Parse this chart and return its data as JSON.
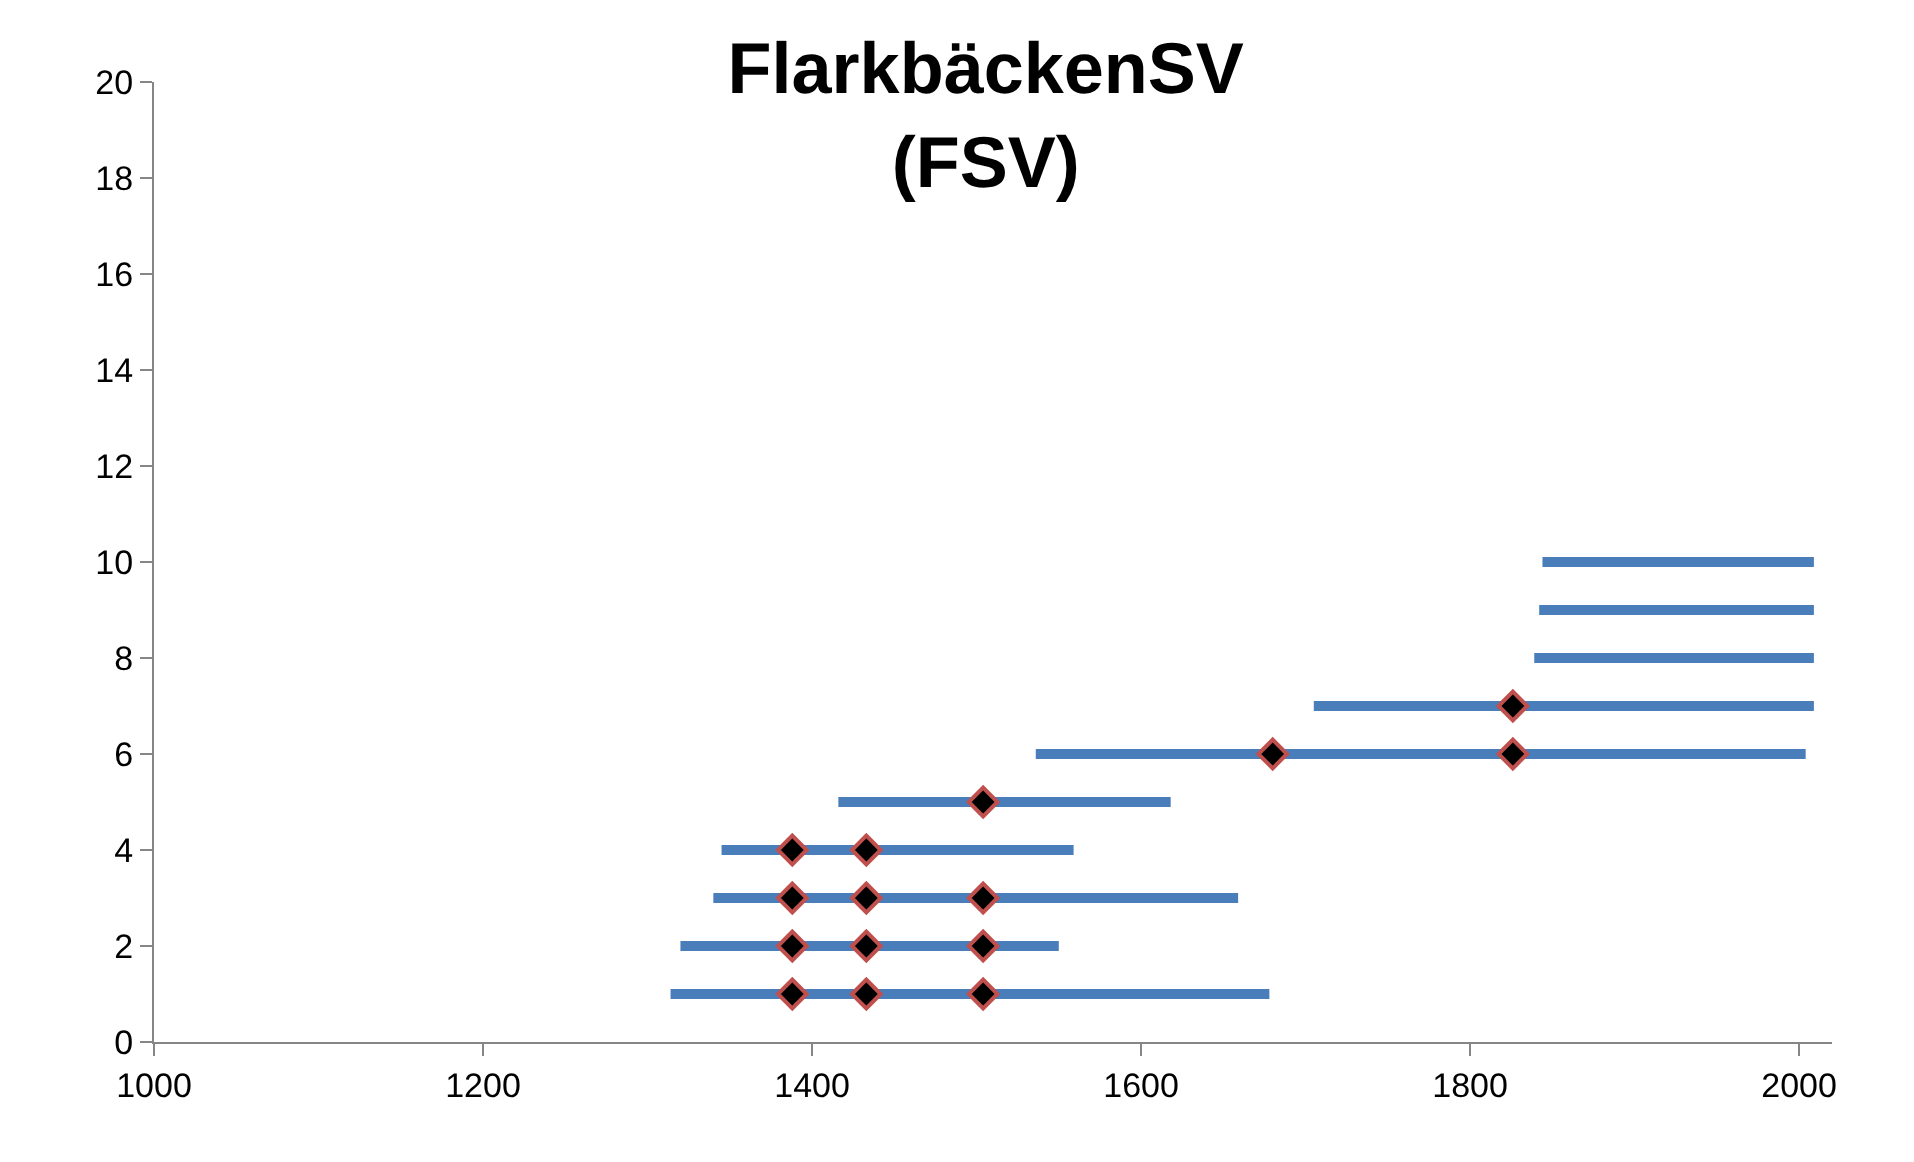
{
  "chart_data": {
    "type": "line",
    "title": "FlarkbäckenSV\n(FSV)",
    "xlim": [
      1000,
      2020
    ],
    "xticks": [
      1000,
      1200,
      1400,
      1600,
      1800,
      2000
    ],
    "ylim": [
      0,
      20
    ],
    "yticks": [
      0,
      2,
      4,
      6,
      8,
      10,
      12,
      14,
      16,
      18,
      20
    ],
    "line_style": "solid",
    "series": [
      {
        "color": "#4a7ebb",
        "x": [
          1314,
          1678
        ],
        "values": [
          1,
          1
        ]
      },
      {
        "color": "#4a7ebb",
        "x": [
          1320,
          1550
        ],
        "values": [
          2,
          2
        ]
      },
      {
        "color": "#4a7ebb",
        "x": [
          1340,
          1659
        ],
        "values": [
          3,
          3
        ]
      },
      {
        "color": "#4a7ebb",
        "x": [
          1345,
          1559
        ],
        "values": [
          4,
          4
        ]
      },
      {
        "color": "#4a7ebb",
        "x": [
          1416,
          1618
        ],
        "values": [
          5,
          5
        ]
      },
      {
        "color": "#4a7ebb",
        "x": [
          1536,
          2004
        ],
        "values": [
          6,
          6
        ]
      },
      {
        "color": "#4a7ebb",
        "x": [
          1705,
          2009
        ],
        "values": [
          7,
          7
        ]
      },
      {
        "color": "#4a7ebb",
        "x": [
          1839,
          2009
        ],
        "values": [
          8,
          8
        ]
      },
      {
        "color": "#4a7ebb",
        "x": [
          1842,
          2009
        ],
        "values": [
          9,
          9
        ]
      },
      {
        "color": "#4a7ebb",
        "x": [
          1844,
          2009
        ],
        "values": [
          10,
          10
        ]
      },
      {
        "type": "scatter",
        "marker": "diamond",
        "color": "#000000",
        "x": [
          1388,
          1433,
          1504,
          1388,
          1433,
          1504,
          1388,
          1433,
          1504,
          1388,
          1433,
          1504,
          1680,
          1826,
          1826
        ],
        "values": [
          1,
          1,
          1,
          2,
          2,
          2,
          3,
          3,
          3,
          4,
          4,
          5,
          6,
          6,
          7
        ]
      }
    ]
  }
}
